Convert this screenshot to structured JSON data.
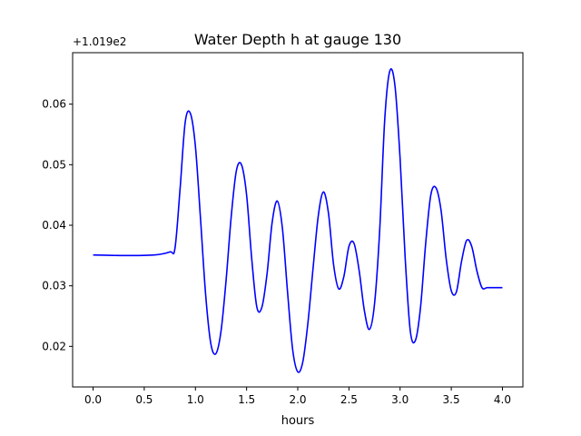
{
  "chart_data": {
    "type": "line",
    "title": "Water Depth h at gauge 130",
    "xlabel": "hours",
    "ylabel": "",
    "offset_label": "+1.019e2",
    "xlim": [
      -0.2,
      4.2
    ],
    "ylim": [
      0.0133,
      0.0685
    ],
    "xticks": [
      0.0,
      0.5,
      1.0,
      1.5,
      2.0,
      2.5,
      3.0,
      3.5,
      4.0
    ],
    "xtick_labels": [
      "0.0",
      "0.5",
      "1.0",
      "1.5",
      "2.0",
      "2.5",
      "3.0",
      "3.5",
      "4.0"
    ],
    "yticks": [
      0.02,
      0.03,
      0.04,
      0.05,
      0.06
    ],
    "ytick_labels": [
      "0.02",
      "0.03",
      "0.04",
      "0.05",
      "0.06"
    ],
    "grid": false,
    "series": [
      {
        "color": "#0000ff",
        "x": [
          0.0,
          0.3,
          0.6,
          0.75,
          0.8,
          0.85,
          0.9,
          0.95,
          1.0,
          1.05,
          1.1,
          1.15,
          1.2,
          1.25,
          1.3,
          1.35,
          1.4,
          1.45,
          1.5,
          1.55,
          1.6,
          1.65,
          1.7,
          1.75,
          1.8,
          1.85,
          1.9,
          1.95,
          2.0,
          2.05,
          2.1,
          2.15,
          2.2,
          2.25,
          2.3,
          2.35,
          2.4,
          2.45,
          2.5,
          2.55,
          2.6,
          2.65,
          2.7,
          2.75,
          2.8,
          2.85,
          2.9,
          2.95,
          3.0,
          3.05,
          3.1,
          3.15,
          3.2,
          3.25,
          3.3,
          3.35,
          3.4,
          3.45,
          3.5,
          3.55,
          3.6,
          3.65,
          3.7,
          3.75,
          3.8,
          3.85,
          3.9,
          3.95,
          4.0
        ],
        "y": [
          0.0351,
          0.035,
          0.0351,
          0.0356,
          0.0362,
          0.046,
          0.057,
          0.0585,
          0.053,
          0.041,
          0.0285,
          0.0205,
          0.0188,
          0.0225,
          0.031,
          0.0415,
          0.049,
          0.05,
          0.045,
          0.0345,
          0.0265,
          0.0265,
          0.032,
          0.0405,
          0.044,
          0.0395,
          0.029,
          0.0195,
          0.0158,
          0.0175,
          0.024,
          0.033,
          0.0415,
          0.0455,
          0.042,
          0.0335,
          0.0295,
          0.0315,
          0.0365,
          0.037,
          0.0325,
          0.026,
          0.0228,
          0.027,
          0.039,
          0.0575,
          0.0655,
          0.063,
          0.051,
          0.0345,
          0.0225,
          0.021,
          0.0265,
          0.037,
          0.045,
          0.0462,
          0.0425,
          0.0345,
          0.0292,
          0.029,
          0.034,
          0.0375,
          0.0365,
          0.0325,
          0.0297,
          0.0297,
          0.0297,
          0.0297,
          0.0297
        ]
      }
    ]
  }
}
